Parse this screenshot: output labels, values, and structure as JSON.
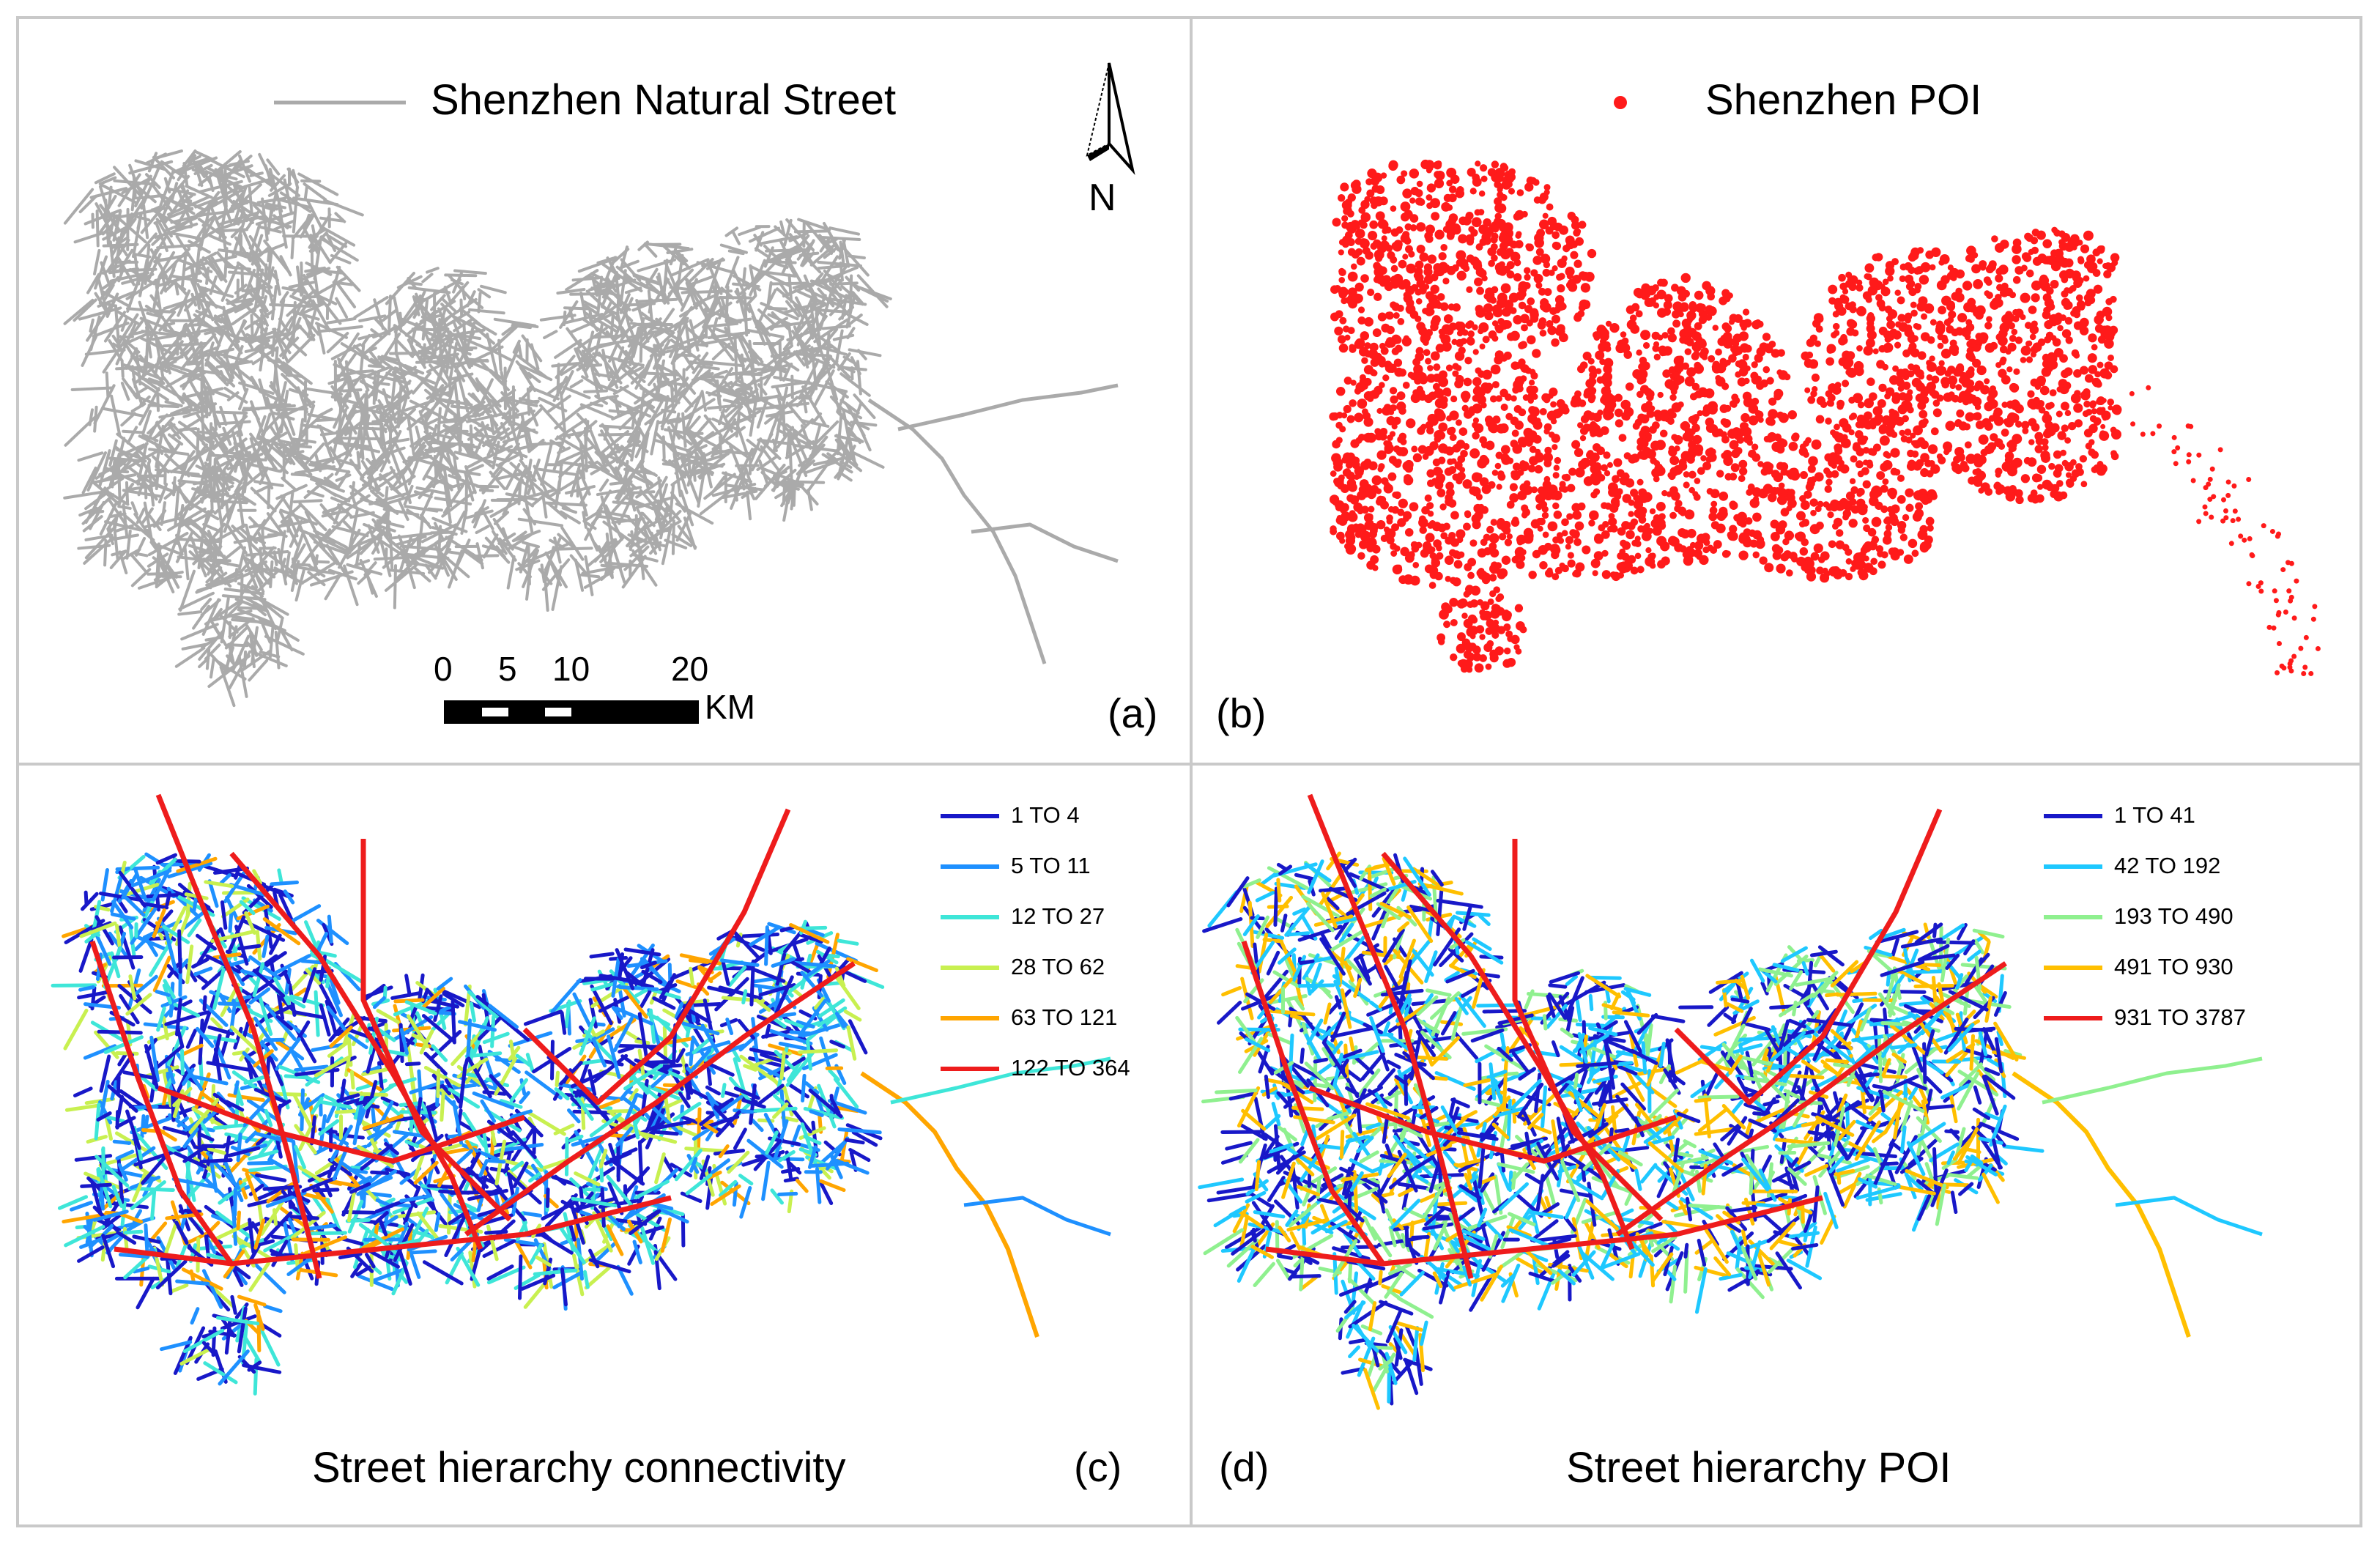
{
  "panels": {
    "a": {
      "legend_label": "Shenzhen Natural Street",
      "north_label": "N",
      "scale_ticks": [
        "0",
        "5",
        "10",
        "20"
      ],
      "scale_unit": "KM",
      "panel_label": "(a)",
      "street_color": "#aaaaaa"
    },
    "b": {
      "legend_label": "Shenzhen POI",
      "panel_label": "(b)",
      "poi_color": "#ff1a1a"
    },
    "c": {
      "caption": "Street hierarchy connectivity",
      "panel_label": "(c)",
      "legend": [
        {
          "label": "1 TO 4",
          "color": "#1818c8"
        },
        {
          "label": "5 TO 11",
          "color": "#1e90ff"
        },
        {
          "label": "12 TO 27",
          "color": "#3ee6d8"
        },
        {
          "label": "28 TO 62",
          "color": "#c8f050"
        },
        {
          "label": "63 TO 121",
          "color": "#ffa500"
        },
        {
          "label": "122 TO 364",
          "color": "#ee1c1c"
        }
      ]
    },
    "d": {
      "caption": "Street hierarchy POI",
      "panel_label": "(d)",
      "legend": [
        {
          "label": "1 TO 41",
          "color": "#1818c8"
        },
        {
          "label": "42 TO 192",
          "color": "#1ec8ff"
        },
        {
          "label": "193 TO 490",
          "color": "#8ff08f"
        },
        {
          "label": "491 TO 930",
          "color": "#ffbf00"
        },
        {
          "label": "931 TO 3787",
          "color": "#ee1c1c"
        }
      ]
    }
  }
}
